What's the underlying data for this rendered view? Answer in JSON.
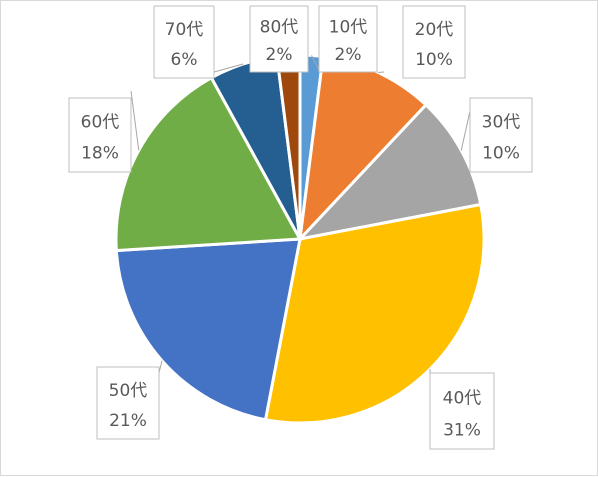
{
  "chart_data": {
    "type": "pie",
    "categories": [
      "10代",
      "20代",
      "30代",
      "40代",
      "50代",
      "60代",
      "70代",
      "80代"
    ],
    "values": [
      2,
      10,
      10,
      31,
      21,
      18,
      6,
      2
    ],
    "value_labels": [
      "2%",
      "10%",
      "10%",
      "31%",
      "21%",
      "18%",
      "6%",
      "2%"
    ],
    "colors": [
      "#5b9bd5",
      "#ed7d31",
      "#a5a5a5",
      "#ffc000",
      "#4472c4",
      "#70ad47",
      "#255e91",
      "#9e480e"
    ],
    "start_angle_deg": 0,
    "direction": "clockwise",
    "legend": "none",
    "data_labels": "outside-with-callout"
  }
}
